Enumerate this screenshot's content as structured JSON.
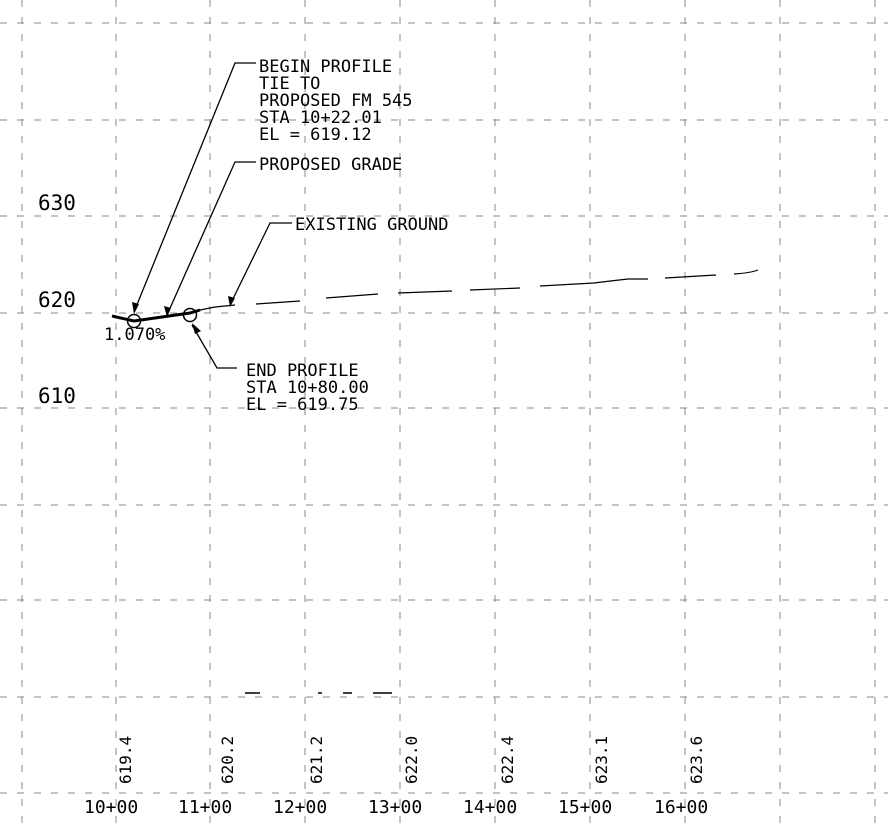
{
  "profile": {
    "y_axis_labels": [
      "630",
      "620",
      "610"
    ],
    "stations": [
      "10+00",
      "11+00",
      "12+00",
      "13+00",
      "14+00",
      "15+00",
      "16+00"
    ],
    "existing_elevations": [
      "619.4",
      "620.2",
      "621.2",
      "622.0",
      "622.4",
      "623.1",
      "623.6"
    ],
    "grade_label": "1.070%",
    "begin_profile": {
      "line1": "BEGIN PROFILE",
      "line2": "TIE TO",
      "line3": "PROPOSED FM 545",
      "line4": "STA 10+22.01",
      "line5": "EL = 619.12"
    },
    "proposed_grade_label": "PROPOSED GRADE",
    "existing_ground_label": "EXISTING GROUND",
    "end_profile": {
      "line1": "END PROFILE",
      "line2": "STA 10+80.00",
      "line3": "EL = 619.75"
    }
  }
}
